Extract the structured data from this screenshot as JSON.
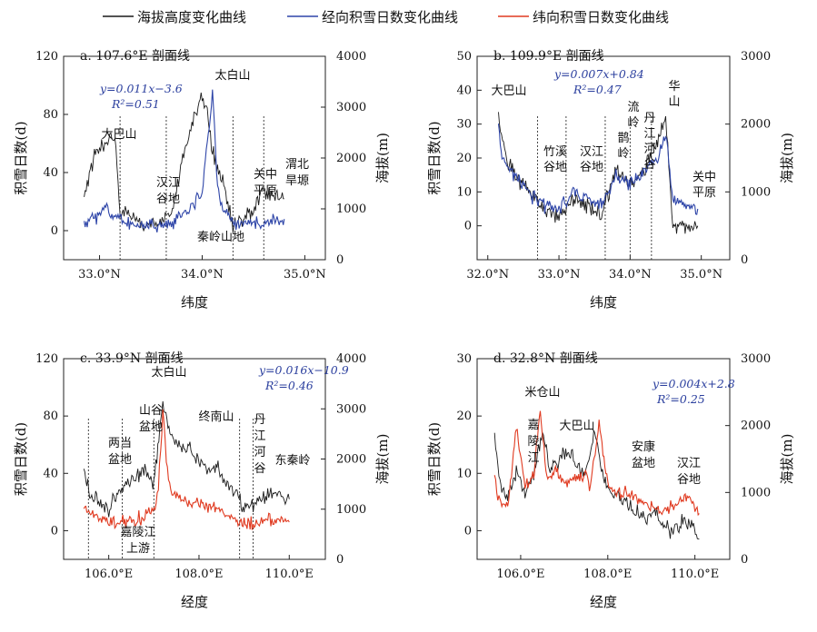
{
  "legend": {
    "items": [
      {
        "label": "海拔高度变化曲线",
        "color": "#1a1a1a"
      },
      {
        "label": "经向积雪日数变化曲线",
        "color": "#2e45a8"
      },
      {
        "label": "纬向积雪日数变化曲线",
        "color": "#e03a20"
      }
    ]
  },
  "chart_data": [
    {
      "id": "a",
      "type": "line",
      "title": "a. 107.6°E 剖面线",
      "xlabel": "纬度",
      "ylabel": "积雪日数(d)",
      "y2label": "海拔(m)",
      "xlim": [
        32.65,
        35.2
      ],
      "ylim": [
        -20,
        120
      ],
      "y2lim": [
        0,
        4000
      ],
      "xticks": [
        33.0,
        34.0,
        35.0
      ],
      "xtick_labels": [
        "33.0°N",
        "34.0°N",
        "35.0°N"
      ],
      "yticks": [
        0,
        40,
        80,
        120
      ],
      "y2ticks": [
        0,
        1000,
        2000,
        3000,
        4000
      ],
      "equation": "y=0.011x−3.6",
      "r2": "R²=0.51",
      "snow_color": "#2e45a8",
      "dividers": [
        33.2,
        33.65,
        34.3,
        34.6
      ],
      "annotations": [
        "大巴山",
        "汉江",
        "谷地",
        "太白山",
        "秦岭山地",
        "关中",
        "平原",
        "渭北",
        "旱塬"
      ],
      "elev_profile": [
        [
          32.85,
          1200
        ],
        [
          32.95,
          2100
        ],
        [
          33.05,
          2300
        ],
        [
          33.15,
          2400
        ],
        [
          33.2,
          1000
        ],
        [
          33.3,
          800
        ],
        [
          33.4,
          750
        ],
        [
          33.5,
          700
        ],
        [
          33.6,
          750
        ],
        [
          33.7,
          900
        ],
        [
          33.8,
          1900
        ],
        [
          33.9,
          2700
        ],
        [
          34.0,
          3200
        ],
        [
          34.05,
          2900
        ],
        [
          34.1,
          2100
        ],
        [
          34.2,
          1500
        ],
        [
          34.3,
          700
        ],
        [
          34.4,
          800
        ],
        [
          34.5,
          950
        ],
        [
          34.6,
          1350
        ],
        [
          34.7,
          1300
        ],
        [
          34.8,
          1200
        ]
      ],
      "snow_profile": [
        [
          32.85,
          5
        ],
        [
          32.95,
          8
        ],
        [
          33.0,
          12
        ],
        [
          33.05,
          18
        ],
        [
          33.1,
          10
        ],
        [
          33.2,
          7
        ],
        [
          33.3,
          4
        ],
        [
          33.5,
          3
        ],
        [
          33.7,
          5
        ],
        [
          33.8,
          10
        ],
        [
          33.9,
          18
        ],
        [
          34.0,
          25
        ],
        [
          34.05,
          60
        ],
        [
          34.1,
          95
        ],
        [
          34.15,
          30
        ],
        [
          34.2,
          14
        ],
        [
          34.3,
          6
        ],
        [
          34.4,
          3
        ],
        [
          34.6,
          7
        ],
        [
          34.8,
          8
        ]
      ]
    },
    {
      "id": "b",
      "type": "line",
      "title": "b. 109.9°E 剖面线",
      "xlabel": "纬度",
      "ylabel": "积雪日数(d)",
      "y2label": "海拔(m)",
      "xlim": [
        31.85,
        35.4
      ],
      "ylim": [
        -10,
        50
      ],
      "y2lim": [
        0,
        3000
      ],
      "xticks": [
        32.0,
        33.0,
        34.0,
        35.0
      ],
      "xtick_labels": [
        "32.0°N",
        "33.0°N",
        "34.0°N",
        "35.0°N"
      ],
      "yticks": [
        0,
        10,
        20,
        30,
        40,
        50
      ],
      "y2ticks": [
        0,
        1000,
        2000,
        3000
      ],
      "equation": "y=0.007x+0.84",
      "r2": "R²=0.47",
      "snow_color": "#2e45a8",
      "dividers": [
        32.7,
        33.1,
        33.65,
        34.0,
        34.3
      ],
      "annotations": [
        "大巴山",
        "竹溪",
        "谷地",
        "汉江",
        "谷地",
        "流",
        "岭",
        "鹊",
        "岭",
        "丹",
        "江",
        "河",
        "谷",
        "华",
        "山",
        "关中",
        "平原"
      ],
      "elev_profile": [
        [
          32.15,
          2200
        ],
        [
          32.25,
          1500
        ],
        [
          32.4,
          1200
        ],
        [
          32.6,
          1000
        ],
        [
          32.8,
          700
        ],
        [
          33.0,
          650
        ],
        [
          33.2,
          900
        ],
        [
          33.4,
          800
        ],
        [
          33.6,
          700
        ],
        [
          33.8,
          1300
        ],
        [
          34.0,
          1100
        ],
        [
          34.2,
          1300
        ],
        [
          34.4,
          1800
        ],
        [
          34.5,
          2100
        ],
        [
          34.6,
          500
        ],
        [
          34.8,
          500
        ],
        [
          34.95,
          500
        ]
      ],
      "snow_profile": [
        [
          32.15,
          30
        ],
        [
          32.2,
          20
        ],
        [
          32.4,
          14
        ],
        [
          32.6,
          9
        ],
        [
          32.8,
          6
        ],
        [
          33.0,
          5
        ],
        [
          33.2,
          10
        ],
        [
          33.4,
          8
        ],
        [
          33.6,
          6
        ],
        [
          33.8,
          15
        ],
        [
          34.0,
          12
        ],
        [
          34.2,
          16
        ],
        [
          34.4,
          20
        ],
        [
          34.5,
          28
        ],
        [
          34.6,
          8
        ],
        [
          34.8,
          6
        ],
        [
          34.95,
          5
        ]
      ]
    },
    {
      "id": "c",
      "type": "line",
      "title": "c. 33.9°N 剖面线",
      "xlabel": "经度",
      "ylabel": "积雪日数(d)",
      "y2label": "海拔(m)",
      "xlim": [
        105.0,
        110.8
      ],
      "ylim": [
        -20,
        120
      ],
      "y2lim": [
        0,
        4000
      ],
      "xticks": [
        106.0,
        108.0,
        110.0
      ],
      "xtick_labels": [
        "106.0°E",
        "108.0°E",
        "110.0°E"
      ],
      "yticks": [
        0,
        40,
        80,
        120
      ],
      "y2ticks": [
        0,
        1000,
        2000,
        3000,
        4000
      ],
      "equation": "y=0.016x−10.9",
      "r2": "R²=0.46",
      "snow_color": "#e03a20",
      "dividers": [
        105.55,
        106.3,
        107.0,
        108.9,
        109.2
      ],
      "annotations": [
        "两当",
        "盆地",
        "山谷",
        "盆地",
        "太白山",
        "终南山",
        "丹",
        "江",
        "河",
        "谷",
        "东秦岭",
        "嘉陵江",
        "上游"
      ],
      "elev_profile": [
        [
          105.45,
          1700
        ],
        [
          105.6,
          1300
        ],
        [
          105.8,
          1100
        ],
        [
          106.0,
          1000
        ],
        [
          106.2,
          1300
        ],
        [
          106.4,
          1500
        ],
        [
          106.6,
          1600
        ],
        [
          106.8,
          1800
        ],
        [
          107.0,
          1500
        ],
        [
          107.2,
          3100
        ],
        [
          107.4,
          2400
        ],
        [
          107.6,
          2300
        ],
        [
          107.8,
          2200
        ],
        [
          108.0,
          2000
        ],
        [
          108.2,
          1800
        ],
        [
          108.4,
          1900
        ],
        [
          108.6,
          1500
        ],
        [
          108.8,
          1300
        ],
        [
          109.0,
          1000
        ],
        [
          109.2,
          1100
        ],
        [
          109.5,
          1300
        ],
        [
          109.8,
          1250
        ],
        [
          110.0,
          1200
        ]
      ],
      "snow_profile": [
        [
          105.45,
          18
        ],
        [
          105.6,
          10
        ],
        [
          105.8,
          8
        ],
        [
          106.0,
          6
        ],
        [
          106.2,
          5
        ],
        [
          106.4,
          6
        ],
        [
          106.6,
          8
        ],
        [
          106.8,
          10
        ],
        [
          107.0,
          15
        ],
        [
          107.1,
          30
        ],
        [
          107.2,
          85
        ],
        [
          107.3,
          40
        ],
        [
          107.4,
          25
        ],
        [
          107.6,
          22
        ],
        [
          107.8,
          20
        ],
        [
          108.0,
          18
        ],
        [
          108.2,
          16
        ],
        [
          108.4,
          15
        ],
        [
          108.6,
          12
        ],
        [
          108.8,
          8
        ],
        [
          109.0,
          4
        ],
        [
          109.2,
          6
        ],
        [
          109.5,
          9
        ],
        [
          109.8,
          7
        ],
        [
          110.0,
          6
        ]
      ]
    },
    {
      "id": "d",
      "type": "line",
      "title": "d. 32.8°N 剖面线",
      "xlabel": "经度",
      "ylabel": "积雪日数(d)",
      "y2label": "海拔(m)",
      "xlim": [
        105.0,
        110.8
      ],
      "ylim": [
        -5,
        30
      ],
      "y2lim": [
        0,
        3000
      ],
      "xticks": [
        106.0,
        108.0,
        110.0
      ],
      "xtick_labels": [
        "106.0°E",
        "108.0°E",
        "110.0°E"
      ],
      "yticks": [
        0,
        10,
        20,
        30
      ],
      "y2ticks": [
        0,
        1000,
        2000,
        3000
      ],
      "equation": "y=0.004x+2.8",
      "r2": "R²=0.25",
      "snow_color": "#e03a20",
      "dividers": [],
      "annotations": [
        "米仓山",
        "嘉",
        "陵",
        "江",
        "大巴山",
        "安康",
        "盆地",
        "汉江",
        "谷地"
      ],
      "elev_profile": [
        [
          105.4,
          1900
        ],
        [
          105.5,
          1200
        ],
        [
          105.7,
          900
        ],
        [
          105.9,
          1300
        ],
        [
          106.1,
          1000
        ],
        [
          106.3,
          1300
        ],
        [
          106.5,
          1900
        ],
        [
          106.7,
          1300
        ],
        [
          106.9,
          1500
        ],
        [
          107.1,
          1600
        ],
        [
          107.3,
          1400
        ],
        [
          107.5,
          1300
        ],
        [
          107.7,
          1900
        ],
        [
          107.9,
          1200
        ],
        [
          108.1,
          1000
        ],
        [
          108.3,
          900
        ],
        [
          108.5,
          800
        ],
        [
          108.7,
          700
        ],
        [
          108.9,
          600
        ],
        [
          109.1,
          700
        ],
        [
          109.3,
          500
        ],
        [
          109.5,
          400
        ],
        [
          109.7,
          600
        ],
        [
          109.9,
          500
        ],
        [
          110.1,
          300
        ]
      ],
      "snow_profile": [
        [
          105.4,
          9
        ],
        [
          105.5,
          5
        ],
        [
          105.7,
          4
        ],
        [
          105.9,
          18
        ],
        [
          106.1,
          8
        ],
        [
          106.3,
          10
        ],
        [
          106.45,
          21
        ],
        [
          106.6,
          9
        ],
        [
          106.8,
          11
        ],
        [
          107.0,
          8
        ],
        [
          107.2,
          9
        ],
        [
          107.4,
          10
        ],
        [
          107.6,
          8
        ],
        [
          107.8,
          18
        ],
        [
          108.0,
          8
        ],
        [
          108.2,
          6
        ],
        [
          108.4,
          7
        ],
        [
          108.6,
          6
        ],
        [
          108.8,
          5
        ],
        [
          109.0,
          4
        ],
        [
          109.2,
          3
        ],
        [
          109.4,
          4
        ],
        [
          109.6,
          5
        ],
        [
          109.8,
          6
        ],
        [
          110.0,
          4
        ],
        [
          110.1,
          3
        ]
      ]
    }
  ]
}
